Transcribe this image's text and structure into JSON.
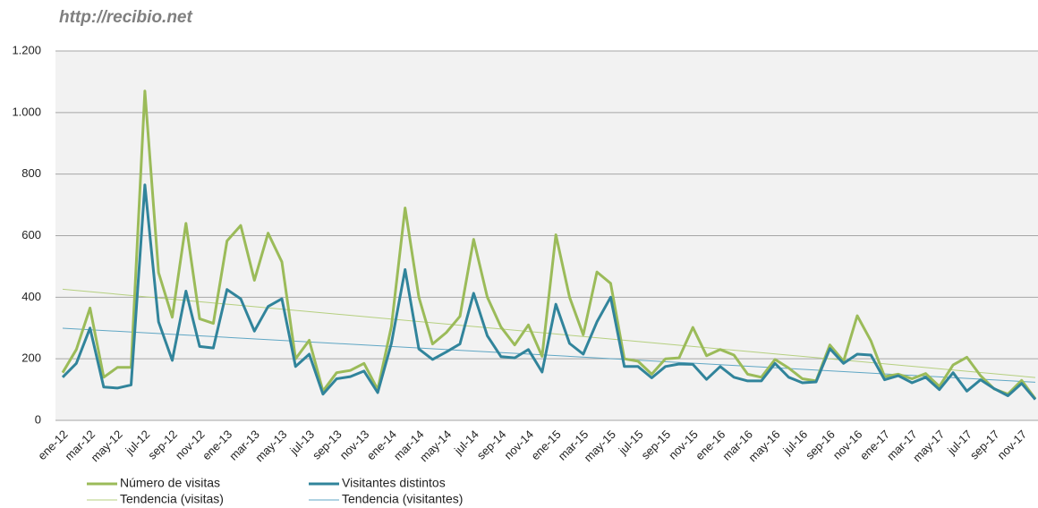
{
  "chart_data": {
    "type": "line",
    "title": "http://recibio.net",
    "categories": [
      "ene-12",
      null,
      "mar-12",
      null,
      "may-12",
      null,
      "jul-12",
      null,
      "sep-12",
      null,
      "nov-12",
      null,
      "ene-13",
      null,
      "mar-13",
      null,
      "may-13",
      null,
      "jul-13",
      null,
      "sep-13",
      null,
      "nov-13",
      null,
      "ene-14",
      null,
      "mar-14",
      null,
      "may-14",
      null,
      "jul-14",
      null,
      "sep-14",
      null,
      "nov-14",
      null,
      "ene-15",
      null,
      "mar-15",
      null,
      "may-15",
      null,
      "jul-15",
      null,
      "sep-15",
      null,
      "nov-15",
      null,
      "ene-16",
      null,
      "mar-16",
      null,
      "may-16",
      null,
      "jul-16",
      null,
      "sep-16",
      null,
      "nov-16",
      null,
      "ene-17",
      null,
      "mar-17",
      null,
      "may-17",
      null,
      "jul-17",
      null,
      "sep-17",
      null,
      "nov-17",
      null
    ],
    "series": [
      {
        "name": "Número de visitas",
        "color": "#9bbb59",
        "values": [
          155,
          230,
          365,
          140,
          172,
          172,
          1070,
          480,
          335,
          640,
          330,
          315,
          583,
          633,
          455,
          608,
          515,
          200,
          260,
          95,
          155,
          162,
          185,
          100,
          305,
          690,
          400,
          248,
          285,
          338,
          588,
          400,
          303,
          245,
          310,
          208,
          603,
          400,
          278,
          482,
          445,
          200,
          192,
          150,
          200,
          203,
          302,
          210,
          230,
          212,
          150,
          140,
          198,
          170,
          135,
          128,
          245,
          192,
          340,
          258,
          142,
          150,
          135,
          152,
          110,
          180,
          205,
          145,
          102,
          85,
          130,
          70
        ]
      },
      {
        "name": "Visitantes distintos",
        "color": "#31849b",
        "values": [
          140,
          185,
          300,
          108,
          105,
          115,
          765,
          320,
          195,
          420,
          240,
          235,
          425,
          395,
          290,
          370,
          395,
          175,
          215,
          85,
          135,
          142,
          160,
          90,
          250,
          490,
          232,
          198,
          222,
          248,
          413,
          275,
          207,
          203,
          230,
          157,
          377,
          250,
          215,
          320,
          400,
          175,
          175,
          138,
          175,
          183,
          182,
          133,
          175,
          140,
          128,
          128,
          185,
          140,
          122,
          125,
          233,
          185,
          215,
          212,
          132,
          145,
          122,
          140,
          100,
          155,
          95,
          132,
          103,
          80,
          120,
          68
        ]
      }
    ],
    "trendlines": [
      {
        "name": "Tendencia (visitas)",
        "color": "#b5cf7f",
        "series": 0
      },
      {
        "name": "Tendencia (visitantes)",
        "color": "#5fa6c4",
        "series": 1
      }
    ],
    "ylim": [
      0,
      1200
    ],
    "yticks": [
      0,
      200,
      400,
      600,
      800,
      {
        "value": 1000,
        "label": "1.000"
      },
      {
        "value": 1200,
        "label": "1.200"
      }
    ],
    "grid": true
  }
}
